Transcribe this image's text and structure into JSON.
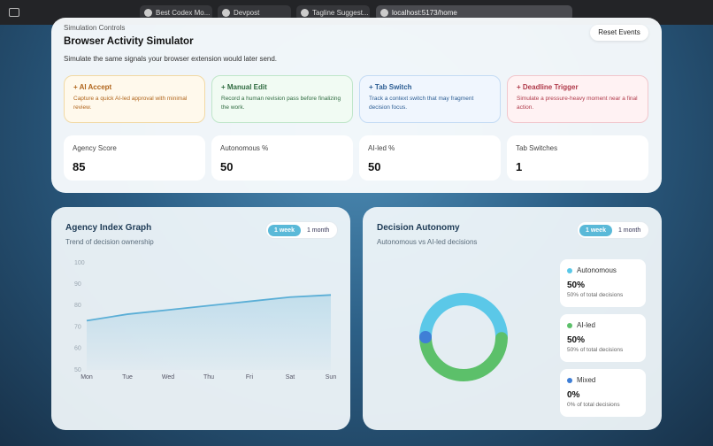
{
  "browser": {
    "tabs": [
      "Best Codex Mo...",
      "Devpost",
      "Tagline Suggest..."
    ],
    "url": "localhost:5173/home"
  },
  "simulator": {
    "heading": "Simulation Controls",
    "title": "Browser Activity Simulator",
    "subtitle": "Simulate the same signals your browser extension would later send.",
    "reset": "Reset Events",
    "actions": [
      {
        "label": "+ AI Accept",
        "description": "Capture a quick AI-led approval with minimal review."
      },
      {
        "label": "+ Manual Edit",
        "description": "Record a human revision pass before finalizing the work."
      },
      {
        "label": "+ Tab Switch",
        "description": "Track a context switch that may fragment decision focus."
      },
      {
        "label": "+ Deadline Trigger",
        "description": "Simulate a pressure-heavy moment near a final action."
      }
    ],
    "stats": [
      {
        "label": "Agency Score",
        "value": 85
      },
      {
        "label": "Autonomous %",
        "value": 50
      },
      {
        "label": "AI-led %",
        "value": 50
      },
      {
        "label": "Tab Switches",
        "value": 1
      }
    ]
  },
  "panels": [
    {
      "toggles": [
        "1 week",
        "1 month"
      ]
    },
    {
      "toggles": [
        "1 week",
        "1 month"
      ]
    }
  ],
  "chart_data": [
    {
      "type": "line",
      "title": "Agency Index Graph",
      "subtitle": "Trend of decision ownership",
      "categories": [
        "Mon",
        "Tue",
        "Wed",
        "Thu",
        "Fri",
        "Sat",
        "Sun"
      ],
      "values": [
        73,
        76,
        78,
        80,
        82,
        84,
        85
      ],
      "color": "#5aaed6",
      "ylim": [
        50,
        100
      ],
      "yticks": [
        50,
        60,
        70,
        80,
        90,
        100
      ],
      "grid": false
    },
    {
      "type": "donut",
      "title": "Decision Autonomy",
      "subtitle": "Autonomous vs AI-led decisions",
      "categories": [
        "Autonomous",
        "AI-led",
        "Mixed"
      ],
      "values": [
        50,
        50,
        0
      ],
      "value_labels": [
        "50%",
        "50%",
        "0%"
      ],
      "notes": [
        "50% of total decisions",
        "50% of total decisions",
        "0% of total decisions"
      ],
      "colors": [
        "#5bc8e8",
        "#5cc06a",
        "#3f7fd6"
      ]
    }
  ]
}
